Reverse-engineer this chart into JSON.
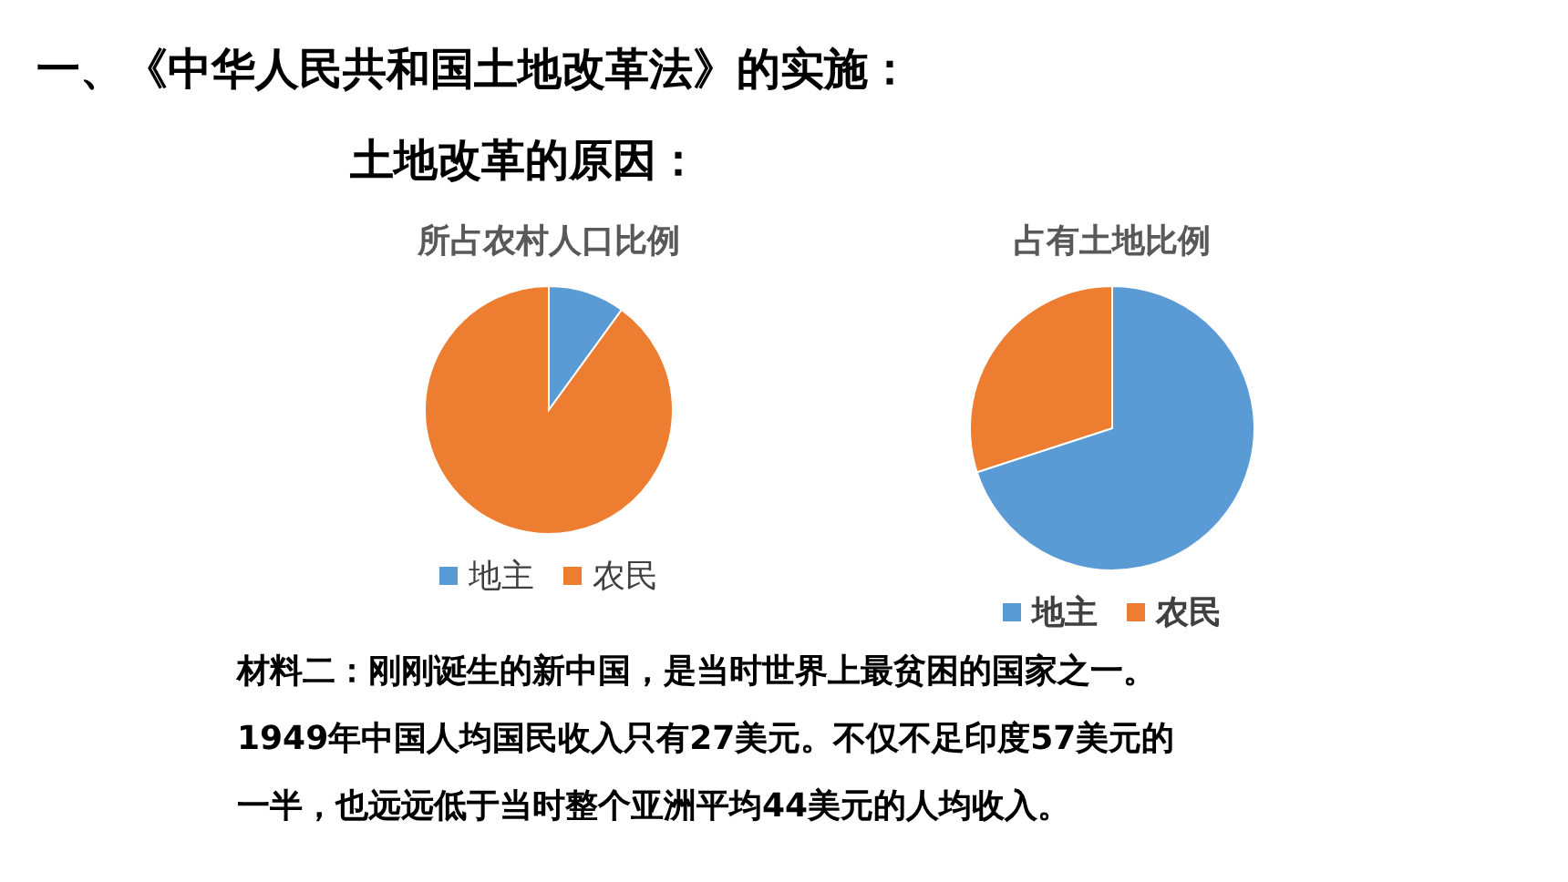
{
  "chart_data": [
    {
      "type": "pie",
      "title": "所占农村人口比例",
      "categories": [
        "地主",
        "农民"
      ],
      "values": [
        10,
        90
      ],
      "colors": [
        "#5b9bd5",
        "#ed7d31"
      ],
      "legend": "bottom",
      "annotations": [
        "一、《中华人民共和国土地改革法》的实施：",
        "土地改革的原因："
      ]
    },
    {
      "type": "pie",
      "title": "占有土地比例",
      "categories": [
        "地主",
        "农民"
      ],
      "values": [
        70,
        30
      ],
      "colors": [
        "#5b9bd5",
        "#ed7d31"
      ],
      "legend": "bottom",
      "annotations": [
        "材料二：刚刚诞生的新中国，是当时世界上最贫困的国家之一。",
        "1949年中国人均国民收入只有27美元。不仅不足印度57美元的",
        "一半，也远远低于当时整个亚洲平均44美元的人均收入。"
      ]
    }
  ]
}
